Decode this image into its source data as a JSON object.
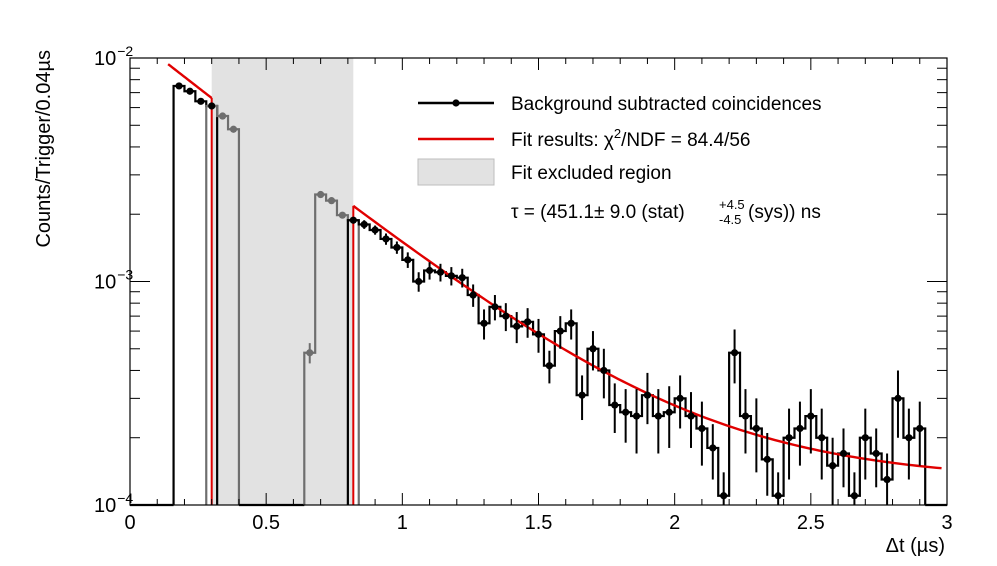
{
  "colors": {
    "data": "#000000",
    "excluded_step": "#6e6e6e",
    "fit": "#e00000",
    "excluded_band": "#e2e2e2",
    "axis": "#000000"
  },
  "chart_data": {
    "type": "scatter",
    "xlabel": "Δt (µs)",
    "ylabel": "Counts/Trigger/0.04µs",
    "xlim": [
      0,
      3
    ],
    "ylim": [
      0.0001,
      0.01
    ],
    "yscale": "log",
    "x_ticks": [
      "0",
      "0.5",
      "1",
      "1.5",
      "2",
      "2.5",
      "3"
    ],
    "y_ticks": [
      {
        "value": 0.0001,
        "base": "10",
        "exp": "−4"
      },
      {
        "value": 0.001,
        "base": "10",
        "exp": "−3"
      },
      {
        "value": 0.01,
        "base": "10",
        "exp": "−2"
      }
    ],
    "excluded_region": [
      0.3,
      0.82
    ],
    "fit": {
      "tau_ns": 451.1,
      "x_range": [
        0.82,
        2.98
      ],
      "a": 0.00205,
      "b": 0.000129
    },
    "fit_pre": {
      "x_range": [
        0.14,
        0.3
      ]
    },
    "series": [
      {
        "name": "Background subtracted coincidences",
        "bin_width": 0.04,
        "points": [
          [
            0.18,
            0.0075,
            0
          ],
          [
            0.22,
            0.0071,
            0
          ],
          [
            0.26,
            0.0064,
            0
          ],
          [
            0.3,
            0.0061,
            0
          ],
          [
            0.34,
            0.0055,
            0
          ],
          [
            0.38,
            0.0048,
            0
          ],
          [
            0.66,
            0.00048,
            5e-05
          ],
          [
            0.7,
            0.00245,
            0
          ],
          [
            0.74,
            0.0023,
            0
          ],
          [
            0.78,
            0.00198,
            0
          ],
          [
            0.82,
            0.00188,
            0
          ],
          [
            0.86,
            0.0018,
            8e-05
          ],
          [
            0.9,
            0.0017,
            8e-05
          ],
          [
            0.94,
            0.00155,
            9e-05
          ],
          [
            0.98,
            0.00142,
            9e-05
          ],
          [
            1.02,
            0.00125,
            0.0001
          ],
          [
            1.06,
            0.001,
            0.0001
          ],
          [
            1.1,
            0.00112,
            0.0001
          ],
          [
            1.14,
            0.0011,
            0.0001
          ],
          [
            1.18,
            0.00106,
            0.0001
          ],
          [
            1.22,
            0.00104,
            0.0001
          ],
          [
            1.26,
            0.00087,
            0.0001
          ],
          [
            1.3,
            0.00065,
            0.0001
          ],
          [
            1.34,
            0.00077,
            0.0001
          ],
          [
            1.38,
            0.0007,
            0.0001
          ],
          [
            1.42,
            0.00063,
            0.0001
          ],
          [
            1.46,
            0.00066,
            0.0001
          ],
          [
            1.5,
            0.00058,
            0.0001
          ],
          [
            1.54,
            0.00042,
            7e-05
          ],
          [
            1.58,
            0.0006,
            0.0001
          ],
          [
            1.62,
            0.00065,
            0.0001
          ],
          [
            1.66,
            0.00031,
            7e-05
          ],
          [
            1.7,
            0.0005,
            0.0001
          ],
          [
            1.74,
            0.0004,
            0.0001
          ],
          [
            1.78,
            0.00028,
            7e-05
          ],
          [
            1.82,
            0.00026,
            7e-05
          ],
          [
            1.86,
            0.00025,
            8e-05
          ],
          [
            1.9,
            0.00031,
            8e-05
          ],
          [
            1.94,
            0.00025,
            8e-05
          ],
          [
            1.98,
            0.00026,
            8e-05
          ],
          [
            2.02,
            0.0003,
            8e-05
          ],
          [
            2.06,
            0.00025,
            7e-05
          ],
          [
            2.1,
            0.00022,
            7e-05
          ],
          [
            2.14,
            0.00018,
            5e-05
          ],
          [
            2.18,
            0.00011,
            3e-05
          ],
          [
            2.22,
            0.00048,
            0.00013
          ],
          [
            2.26,
            0.00025,
            8e-05
          ],
          [
            2.3,
            0.00022,
            8e-05
          ],
          [
            2.34,
            0.00016,
            5e-05
          ],
          [
            2.38,
            0.00011,
            3e-05
          ],
          [
            2.42,
            0.0002,
            7e-05
          ],
          [
            2.46,
            0.00022,
            7e-05
          ],
          [
            2.5,
            0.00025,
            8e-05
          ],
          [
            2.54,
            0.0002,
            7e-05
          ],
          [
            2.58,
            0.00015,
            5e-05
          ],
          [
            2.62,
            0.00017,
            5e-05
          ],
          [
            2.66,
            0.00011,
            3e-05
          ],
          [
            2.7,
            0.0002,
            7e-05
          ],
          [
            2.74,
            0.00017,
            5e-05
          ],
          [
            2.78,
            0.00013,
            4e-05
          ],
          [
            2.82,
            0.0003,
            0.0001
          ],
          [
            2.86,
            0.0002,
            7e-05
          ],
          [
            2.9,
            0.00022,
            7e-05
          ]
        ]
      }
    ],
    "legend": {
      "position": "top-right",
      "entries": [
        {
          "kind": "marker-line",
          "label": "Background subtracted coincidences"
        },
        {
          "kind": "line",
          "label_prefix": "Fit results: χ",
          "label_sup": "2",
          "label_suffix": "/NDF = 84.4/56"
        },
        {
          "kind": "box",
          "label": "Fit excluded region"
        }
      ],
      "tau": {
        "main": "τ = (451.1± 9.0 (stat)",
        "sys_up": "+4.5",
        "sys_down": "-4.5",
        "tail": "(sys)) ns"
      }
    }
  }
}
